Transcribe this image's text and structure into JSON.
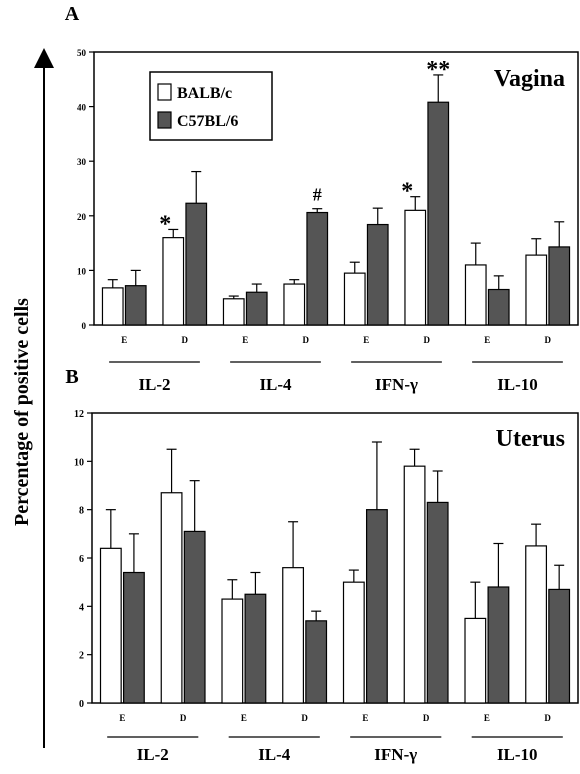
{
  "figure": {
    "ylabel": "Percentage of positive cells"
  },
  "chart_data": [
    {
      "type": "bar",
      "panel_label": "A",
      "title": "Vagina",
      "categories": [
        "E",
        "D",
        "E",
        "D",
        "E",
        "D",
        "E",
        "D"
      ],
      "groups": [
        "IL-2",
        "IL-4",
        "IFN-γ",
        "IL-10"
      ],
      "ylim": [
        0,
        50
      ],
      "yticks": [
        0,
        10,
        20,
        30,
        40,
        50
      ],
      "grid": false,
      "legend_position": "top-left",
      "series": [
        {
          "name": "BALB/c",
          "color": "#ffffff",
          "values": [
            6.8,
            16,
            4.8,
            7.5,
            9.5,
            21,
            11,
            12.8
          ],
          "errors": [
            1.5,
            1.5,
            0.5,
            0.8,
            2,
            2.5,
            4,
            3
          ]
        },
        {
          "name": "C57BL/6",
          "color": "#555555",
          "values": [
            7.2,
            22.3,
            6,
            20.6,
            18.4,
            40.8,
            6.5,
            14.3
          ],
          "errors": [
            2.8,
            5.8,
            1.5,
            0.7,
            3,
            5,
            2.5,
            4.6
          ]
        }
      ],
      "annotations": [
        {
          "text": "*",
          "category_index": 1,
          "series": 0
        },
        {
          "text": "#",
          "category_index": 3,
          "series": 1
        },
        {
          "text": "*",
          "category_index": 5,
          "series": 0
        },
        {
          "text": "**",
          "category_index": 5,
          "series": 1
        }
      ]
    },
    {
      "type": "bar",
      "panel_label": "B",
      "title": "Uterus",
      "categories": [
        "E",
        "D",
        "E",
        "D",
        "E",
        "D",
        "E",
        "D"
      ],
      "groups": [
        "IL-2",
        "IL-4",
        "IFN-γ",
        "IL-10"
      ],
      "ylim": [
        0,
        12
      ],
      "yticks": [
        0,
        2,
        4,
        6,
        8,
        10,
        12
      ],
      "grid": false,
      "series": [
        {
          "name": "BALB/c",
          "color": "#ffffff",
          "values": [
            6.4,
            8.7,
            4.3,
            5.6,
            5.0,
            9.8,
            3.5,
            6.5
          ],
          "errors": [
            1.6,
            1.8,
            0.8,
            1.9,
            0.5,
            0.7,
            1.5,
            0.9
          ]
        },
        {
          "name": "C57BL/6",
          "color": "#555555",
          "values": [
            5.4,
            7.1,
            4.5,
            3.4,
            8.0,
            8.3,
            4.8,
            4.7
          ],
          "errors": [
            1.6,
            2.1,
            0.9,
            0.4,
            2.8,
            1.3,
            1.8,
            1.0
          ]
        }
      ]
    }
  ]
}
